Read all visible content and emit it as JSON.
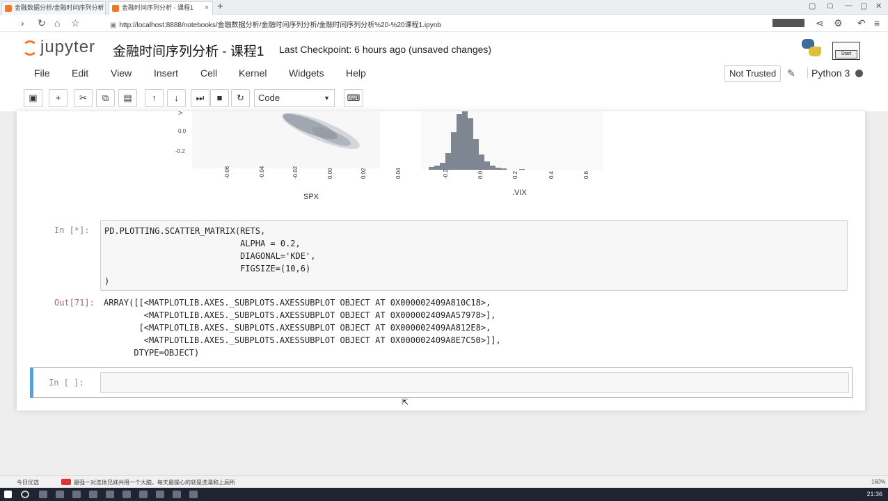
{
  "browser": {
    "tabs": [
      {
        "title": "金融数据分析/金融时间序列分析"
      },
      {
        "title": "金融时间序列分析 - 课程1"
      }
    ],
    "url_prefix": "http://",
    "url_host": "localhost",
    "url_rest": ":8888/notebooks/金融数据分析/金融时间序列分析/金融时间序列分析%20-%20课程1.ipynb"
  },
  "jupyter": {
    "logo_text": "jupyter",
    "notebook_title": "金融时间序列分析 - 课程1",
    "checkpoint": "Last Checkpoint: 6 hours ago (unsaved changes)",
    "start_label": "Start",
    "menu": [
      "File",
      "Edit",
      "View",
      "Insert",
      "Cell",
      "Kernel",
      "Widgets",
      "Help"
    ],
    "trust_label": "Not Trusted",
    "kernel_name": "Python 3",
    "cell_type": "Code"
  },
  "toolbar_icons": [
    "save-icon",
    "plus-icon",
    "cut-icon",
    "copy-icon",
    "paste-icon",
    "arrow-up-icon",
    "arrow-down-icon",
    "run-icon",
    "stop-icon",
    "restart-icon",
    "keyboard-icon"
  ],
  "plot": {
    "y_ticks_left": [
      "0.0",
      "-0.2"
    ],
    "x_ticks_spx": [
      "-0.06",
      "-0.04",
      "-0.02",
      "0.00",
      "0.02",
      "0.04"
    ],
    "x_ticks_vix": [
      "-0.2",
      "0.0",
      "0.2",
      "0.4",
      "0.6"
    ],
    "xlabel_spx": "SPX",
    "xlabel_vix": ".VIX"
  },
  "cells": {
    "in_running": {
      "prompt": "In  [*]:",
      "code": "PD.PLOTTING.SCATTER_MATRIX(RETS,\n                           ALPHA = 0.2,\n                           DIAGONAL='KDE',\n                           FIGSIZE=(10,6)\n)"
    },
    "out71": {
      "prompt": "Out[71]:",
      "text": "ARRAY([[<MATPLOTLIB.AXES._SUBPLOTS.AXESSUBPLOT OBJECT AT 0X000002409A810C18>,\n        <MATPLOTLIB.AXES._SUBPLOTS.AXESSUBPLOT OBJECT AT 0X000002409AA57978>],\n       [<MATPLOTLIB.AXES._SUBPLOTS.AXESSUBPLOT OBJECT AT 0X000002409AA812E8>,\n        <MATPLOTLIB.AXES._SUBPLOTS.AXESSUBPLOT OBJECT AT 0X000002409A8E7C50>]],\n      DTYPE=OBJECT)"
    },
    "in_empty": {
      "prompt": "In  [ ]:"
    }
  },
  "status": {
    "left_label": "今日优选",
    "ticker": "最强一对连体兄妹共用一个大脑，每天最操心的就是洗澡和上厕所",
    "zoom": "160%"
  },
  "taskbar": {
    "time": "21:36"
  }
}
